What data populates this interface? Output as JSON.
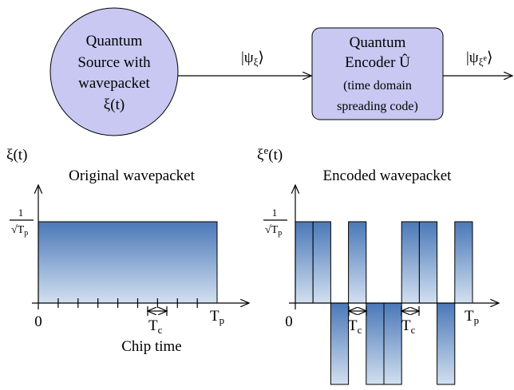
{
  "source": {
    "lines": [
      "Quantum",
      "Source with",
      "wavepacket",
      "ξ(t)"
    ]
  },
  "state_in": {
    "base": "|ψ",
    "sub": "ξ",
    "close": "⟩"
  },
  "encoder": {
    "lines": [
      "Quantum",
      "Encoder Û",
      "(time domain",
      "spreading code)"
    ]
  },
  "state_out": {
    "base": "|ψ",
    "sub": "ξ",
    "sup": "e",
    "close": "⟩"
  },
  "original": {
    "ylabel": "ξ(t)",
    "title": "Original wavepacket",
    "amp_num": "1",
    "amp_den": "√T",
    "amp_den_sub": "p",
    "origin": "0",
    "tc": "T",
    "tc_sub": "c",
    "tp": "T",
    "tp_sub": "p",
    "xlabel": "Chip time"
  },
  "encoded": {
    "ylabel": "ξ",
    "ylabel_sup": "e",
    "ylabel_rest": "(t)",
    "title": "Encoded wavepacket",
    "amp_num": "1",
    "amp_den": "√T",
    "amp_den_sub": "p",
    "origin": "0",
    "tc": "T",
    "tc_sub": "c",
    "tp": "T",
    "tp_sub": "p",
    "code": [
      1,
      1,
      -1,
      1,
      -1,
      -1,
      1,
      1,
      -1,
      1
    ]
  }
}
